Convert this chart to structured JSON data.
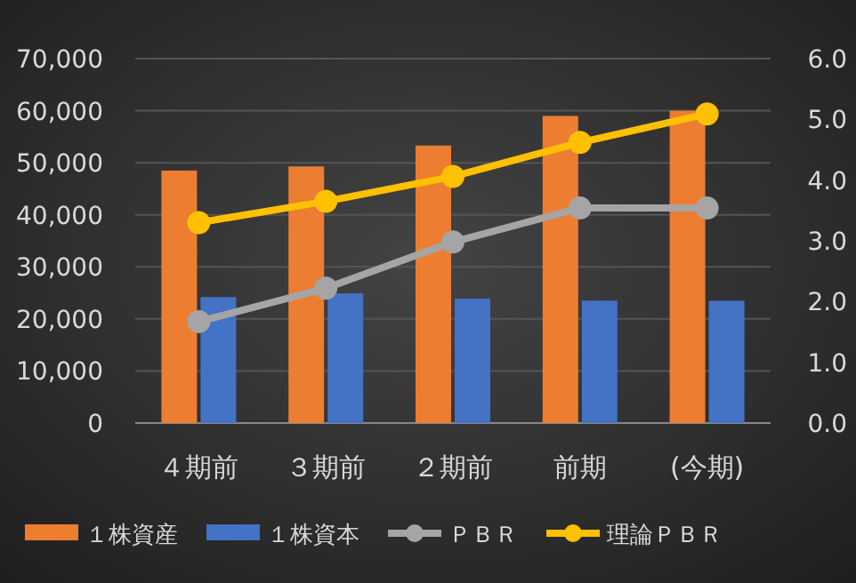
{
  "chart_data": {
    "type": "bar",
    "categories": [
      "４期前",
      "３期前",
      "２期前",
      "前期",
      "(今期)"
    ],
    "series": [
      {
        "name": "１株資産",
        "color": "#ed7d31",
        "values": [
          48500,
          49300,
          53300,
          59000,
          60000
        ]
      },
      {
        "name": "１株資本",
        "color": "#4472c4",
        "values": [
          24200,
          24900,
          23900,
          23500,
          23500
        ]
      },
      {
        "name": "ＰＢＲ",
        "color": "#a5a5a5",
        "type": "line",
        "axis": "y2",
        "marker": "circle",
        "values": [
          1.67,
          2.22,
          2.98,
          3.54,
          3.54
        ]
      },
      {
        "name": "理論ＰＢＲ",
        "color": "#ffc000",
        "type": "line",
        "axis": "y2",
        "marker": "circle",
        "values": [
          3.3,
          3.65,
          4.06,
          4.62,
          5.09
        ]
      }
    ],
    "ylim": [
      0,
      70000
    ],
    "yticks": [
      {
        "value": 0,
        "label": "0"
      },
      {
        "value": 10000,
        "label": "10,000"
      },
      {
        "value": 20000,
        "label": "20,000"
      },
      {
        "value": 30000,
        "label": "30,000"
      },
      {
        "value": 40000,
        "label": "40,000"
      },
      {
        "value": 50000,
        "label": "50,000"
      },
      {
        "value": 60000,
        "label": "60,000"
      },
      {
        "value": 70000,
        "label": "70,000"
      }
    ],
    "y2lim": [
      0,
      6
    ],
    "y2ticks": [
      {
        "value": 0,
        "label": "0.0"
      },
      {
        "value": 1,
        "label": "1.0"
      },
      {
        "value": 2,
        "label": "2.0"
      },
      {
        "value": 3,
        "label": "3.0"
      },
      {
        "value": 4,
        "label": "4.0"
      },
      {
        "value": 5,
        "label": "5.0"
      },
      {
        "value": 6,
        "label": "6.0"
      }
    ],
    "grid": "y",
    "legend": "bottom"
  }
}
